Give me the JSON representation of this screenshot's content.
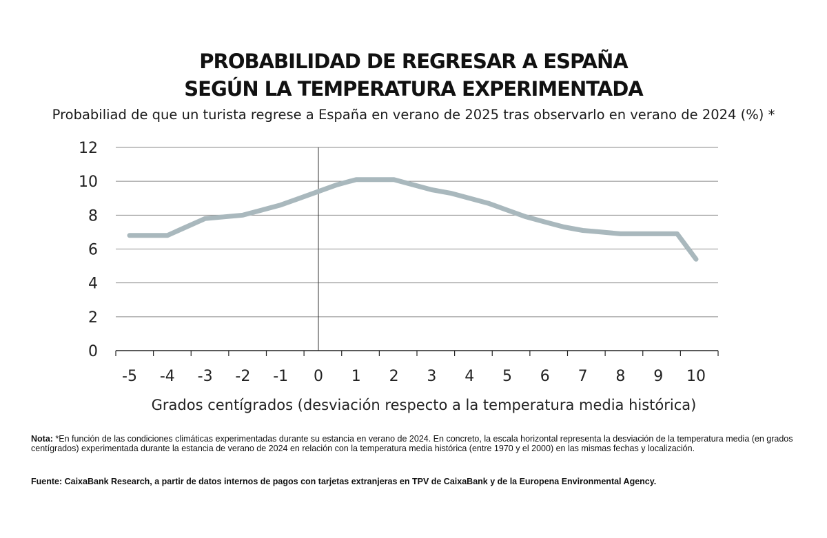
{
  "header": {
    "title_line1": "PROBABILIDAD DE REGRESAR A ESPAÑA",
    "title_line2": "SEGÚN LA TEMPERATURA EXPERIMENTADA",
    "subtitle": "Probabiliad de que un turista regrese a España en verano de 2025 tras observarlo en verano de 2024 (%) *"
  },
  "chart_data": {
    "type": "line",
    "xlabel": "Grados centígrados (desviación respecto a la temperatura media histórica)",
    "ylabel": "",
    "x_tick_labels": [
      "-5",
      "-4",
      "-3",
      "-2",
      "-1",
      "0",
      "1",
      "2",
      "3",
      "4",
      "5",
      "6",
      "7",
      "8",
      "9",
      "10"
    ],
    "y_tick_labels": [
      "0",
      "2",
      "4",
      "6",
      "8",
      "10",
      "12"
    ],
    "ylim": [
      0,
      12
    ],
    "grid": "horizontal",
    "line_color": "#a9b8bd",
    "series": [
      {
        "x": [
          -5,
          -4.5,
          -4,
          -3.5,
          -3,
          -2.5,
          -2,
          -1.5,
          -1,
          -0.5,
          0,
          0.5,
          1,
          1.5,
          2,
          2.5,
          3,
          3.5,
          4,
          4.5,
          5,
          5.5,
          6,
          6.5,
          7,
          7.5,
          8,
          8.5,
          9,
          9.5,
          10
        ],
        "values": [
          6.8,
          6.8,
          6.8,
          7.3,
          7.8,
          7.9,
          8.0,
          8.3,
          8.6,
          9.0,
          9.4,
          9.8,
          10.1,
          10.1,
          10.1,
          9.8,
          9.5,
          9.3,
          9.0,
          8.7,
          8.3,
          7.9,
          7.6,
          7.3,
          7.1,
          7.0,
          6.9,
          6.9,
          6.9,
          6.9,
          5.4
        ]
      }
    ]
  },
  "note": {
    "label": "Nota:",
    "text": " *En función de las condiciones climáticas experimentadas durante su estancia en verano de 2024. En concreto, la escala horizontal representa la desviación de la temperatura media (en grados centígrados) experimentada durante la estancia de verano de 2024 en relación con la temperatura media histórica (entre 1970 y el 2000) en las mismas fechas y localización."
  },
  "source": {
    "text": "Fuente: CaixaBank Research, a partir de datos internos de pagos con tarjetas extranjeras en TPV de CaixaBank y de la Europena Environmental Agency."
  }
}
